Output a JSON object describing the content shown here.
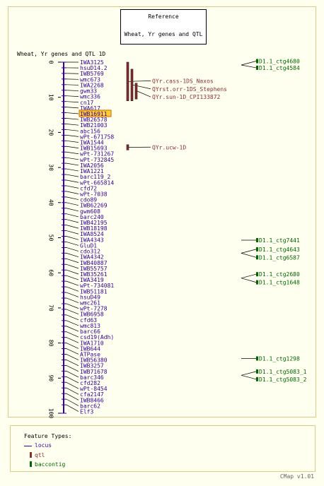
{
  "reference_box": {
    "line1": "Reference",
    "line2": "Wheat, Yr genes and QTL"
  },
  "map_title": "Wheat, Yr genes and QTL 1D",
  "colors": {
    "locus": "#330099",
    "qtl": "#8b2e2e",
    "contig": "#006600",
    "highlight": "#ffcc33"
  },
  "axis_ticks": [
    "0",
    "10",
    "20",
    "30",
    "40",
    "50",
    "60",
    "70",
    "80",
    "90",
    "100"
  ],
  "axis": {
    "min": 0,
    "max": 100
  },
  "loci": [
    {
      "name": "IWA3125",
      "pos": 0.0
    },
    {
      "name": "hsuD14.2",
      "pos": 1.6
    },
    {
      "name": "IWB5769",
      "pos": 3.2
    },
    {
      "name": "wmc673",
      "pos": 4.8
    },
    {
      "name": "IWA2268",
      "pos": 6.4
    },
    {
      "name": "gwm33",
      "pos": 8.0
    },
    {
      "name": "wmc336",
      "pos": 9.6
    },
    {
      "name": "cn17",
      "pos": 11.2
    },
    {
      "name": "IWA617",
      "pos": 12.8
    },
    {
      "name": "IWB16911",
      "pos": 14.4,
      "highlight": true
    },
    {
      "name": "IWB26578",
      "pos": 16.0
    },
    {
      "name": "IWB21003",
      "pos": 17.6
    },
    {
      "name": "abc156",
      "pos": 19.2
    },
    {
      "name": "wPt-671758",
      "pos": 20.8
    },
    {
      "name": "IWA1544",
      "pos": 22.4
    },
    {
      "name": "IWB15693",
      "pos": 24.0
    },
    {
      "name": "wPt-731267",
      "pos": 25.6
    },
    {
      "name": "wPt-732845",
      "pos": 27.2
    },
    {
      "name": "IWA2056",
      "pos": 28.8
    },
    {
      "name": "IWA1221",
      "pos": 30.4
    },
    {
      "name": "barc119_2",
      "pos": 32.0
    },
    {
      "name": "wPt-665814",
      "pos": 33.6
    },
    {
      "name": "cfd72",
      "pos": 35.2
    },
    {
      "name": "wPt-7038",
      "pos": 36.8
    },
    {
      "name": "cdo89",
      "pos": 38.4
    },
    {
      "name": "IWB62269",
      "pos": 40.0
    },
    {
      "name": "gwm608",
      "pos": 41.6
    },
    {
      "name": "barc240",
      "pos": 43.2
    },
    {
      "name": "IWB42195",
      "pos": 44.8
    },
    {
      "name": "IWB18198",
      "pos": 46.4
    },
    {
      "name": "IWA8524",
      "pos": 48.0
    },
    {
      "name": "IWA4343",
      "pos": 49.6
    },
    {
      "name": "GluD1",
      "pos": 51.2
    },
    {
      "name": "cdo312",
      "pos": 52.8
    },
    {
      "name": "IWA4342",
      "pos": 54.4
    },
    {
      "name": "IWB40887",
      "pos": 56.0
    },
    {
      "name": "IWB55757",
      "pos": 57.6
    },
    {
      "name": "IWB35261",
      "pos": 59.2
    },
    {
      "name": "IWA3419",
      "pos": 60.8
    },
    {
      "name": "wPt-734081",
      "pos": 62.4
    },
    {
      "name": "IWB51181",
      "pos": 64.0
    },
    {
      "name": "hsuD49",
      "pos": 65.6
    },
    {
      "name": "wmc261",
      "pos": 67.2
    },
    {
      "name": "wPt-7278",
      "pos": 68.8
    },
    {
      "name": "IWB6958",
      "pos": 70.4
    },
    {
      "name": "cfd63",
      "pos": 72.0
    },
    {
      "name": "wmc813",
      "pos": 73.6
    },
    {
      "name": "barc66",
      "pos": 75.2
    },
    {
      "name": "csd19(Adh)",
      "pos": 76.8
    },
    {
      "name": "IWA1710",
      "pos": 78.4
    },
    {
      "name": "IWB644",
      "pos": 80.0
    },
    {
      "name": "ATPase",
      "pos": 81.6
    },
    {
      "name": "IWB56380",
      "pos": 83.2
    },
    {
      "name": "IWB3257",
      "pos": 84.8
    },
    {
      "name": "IWB71678",
      "pos": 86.4
    },
    {
      "name": "barc346",
      "pos": 88.0
    },
    {
      "name": "cfd282",
      "pos": 89.6
    },
    {
      "name": "wPt-8454",
      "pos": 91.2
    },
    {
      "name": "cfa2147",
      "pos": 92.8
    },
    {
      "name": "IWB8466",
      "pos": 94.4
    },
    {
      "name": "barc62",
      "pos": 96.0
    },
    {
      "name": "Elf3",
      "pos": 97.6
    }
  ],
  "qtls": [
    {
      "name": "QYr.cass-1DS_Naxos",
      "start": 0.0,
      "end": 11.0,
      "label_pos": 5.3
    },
    {
      "name": "QYrst.orr-1DS_Stephens",
      "start": 2.0,
      "end": 11.0,
      "label_pos": 7.6
    },
    {
      "name": "QYr.sun-1D_CPI133872",
      "start": 6.0,
      "end": 10.5,
      "label_pos": 9.9
    },
    {
      "name": "QYr.ucw-1D",
      "start": 23.5,
      "end": 25.0,
      "label_pos": 24.2
    }
  ],
  "contigs": [
    {
      "name": "D1.1_ctg4680",
      "label_pos": -0.3,
      "target": 0.8
    },
    {
      "name": "D1.1_ctg4584",
      "label_pos": 1.6,
      "target": 0.8
    },
    {
      "name": "D1.1_ctg7441",
      "label_pos": 50.7,
      "target": 50.7
    },
    {
      "name": "D1.1_ctg4643",
      "label_pos": 53.3,
      "target": 54.4
    },
    {
      "name": "D1.1_ctg6587",
      "label_pos": 55.6,
      "target": 54.4
    },
    {
      "name": "D1.1_ctg2680",
      "label_pos": 60.4,
      "target": 61.5
    },
    {
      "name": "D1.1_ctg1648",
      "label_pos": 62.7,
      "target": 61.5
    },
    {
      "name": "D1.1_ctg1298",
      "label_pos": 84.4,
      "target": 84.4
    },
    {
      "name": "D1.1_ctg5083_1",
      "label_pos": 88.1,
      "target": 89.2
    },
    {
      "name": "D1.1_ctg5083_2",
      "label_pos": 90.3,
      "target": 89.2
    }
  ],
  "legend": {
    "title": "Feature Types:",
    "items": [
      {
        "label": "locus",
        "shape": "line",
        "color": "#330099"
      },
      {
        "label": "qtl",
        "shape": "box",
        "color": "#8b2e2e"
      },
      {
        "label": "baccontig",
        "shape": "box",
        "color": "#006600"
      }
    ]
  },
  "footer": "CMap v1.01"
}
